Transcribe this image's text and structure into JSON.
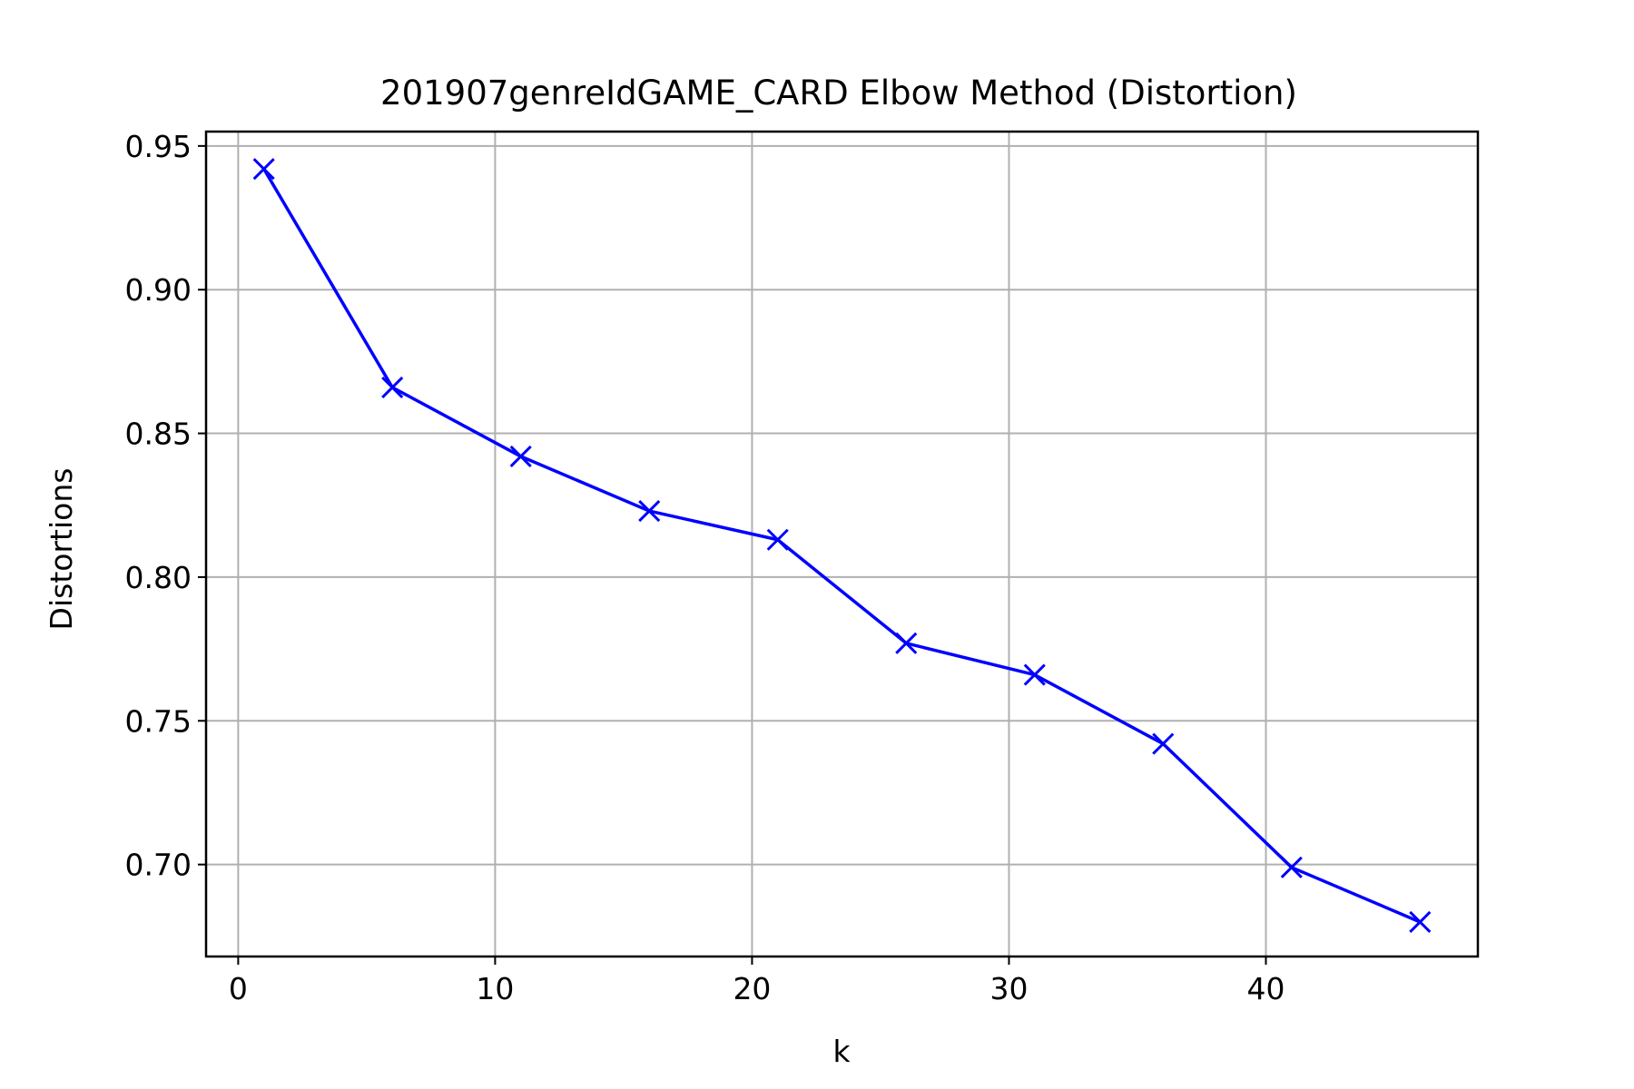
{
  "chart_data": {
    "type": "line",
    "title": "201907genreIdGAME_CARD Elbow Method (Distortion)",
    "xlabel": "k",
    "ylabel": "Distortions",
    "xlim": [
      -1.25,
      48.25
    ],
    "ylim": [
      0.668,
      0.955
    ],
    "xticks": [
      0,
      10,
      20,
      30,
      40
    ],
    "xtick_labels": [
      "0",
      "10",
      "20",
      "30",
      "40"
    ],
    "yticks": [
      0.7,
      0.75,
      0.8,
      0.85,
      0.9,
      0.95
    ],
    "ytick_labels": [
      "0.70",
      "0.75",
      "0.80",
      "0.85",
      "0.90",
      "0.95"
    ],
    "grid": true,
    "legend": "none",
    "series": [
      {
        "color": "#0000ff",
        "marker": "x",
        "x": [
          1,
          6,
          11,
          16,
          21,
          26,
          31,
          36,
          41,
          46
        ],
        "y": [
          0.942,
          0.866,
          0.842,
          0.823,
          0.813,
          0.777,
          0.766,
          0.742,
          0.699,
          0.68
        ]
      }
    ]
  }
}
